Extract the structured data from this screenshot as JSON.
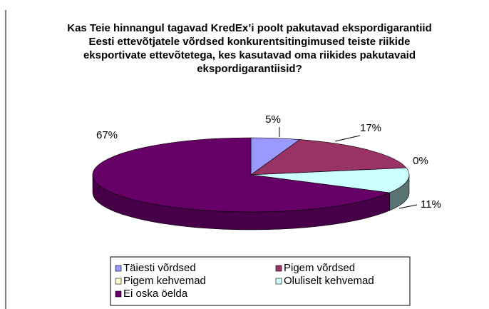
{
  "chart_data": {
    "type": "pie",
    "title": "Kas Teie hinnangul tagavad KredEx’i poolt pakutavad ekspordigarantiid Eesti ettevõtjatele võrdsed konkurentsitingimused teiste riikide eksportivate ettevõtetega, kes kasutavad oma riikides pakutavaid ekspordigarantiisid?",
    "categories": [
      "Täiesti võrdsed",
      "Pigem võrdsed",
      "Pigem kehvemad",
      "Oluliselt kehvemad",
      "Ei oska öelda"
    ],
    "values": [
      5,
      17,
      0,
      11,
      67
    ],
    "value_labels": [
      "5%",
      "17%",
      "0%",
      "11%",
      "67%"
    ],
    "colors": [
      "#9999ff",
      "#993366",
      "#ffffcc",
      "#ccffff",
      "#660066"
    ],
    "legend": "bottom"
  }
}
